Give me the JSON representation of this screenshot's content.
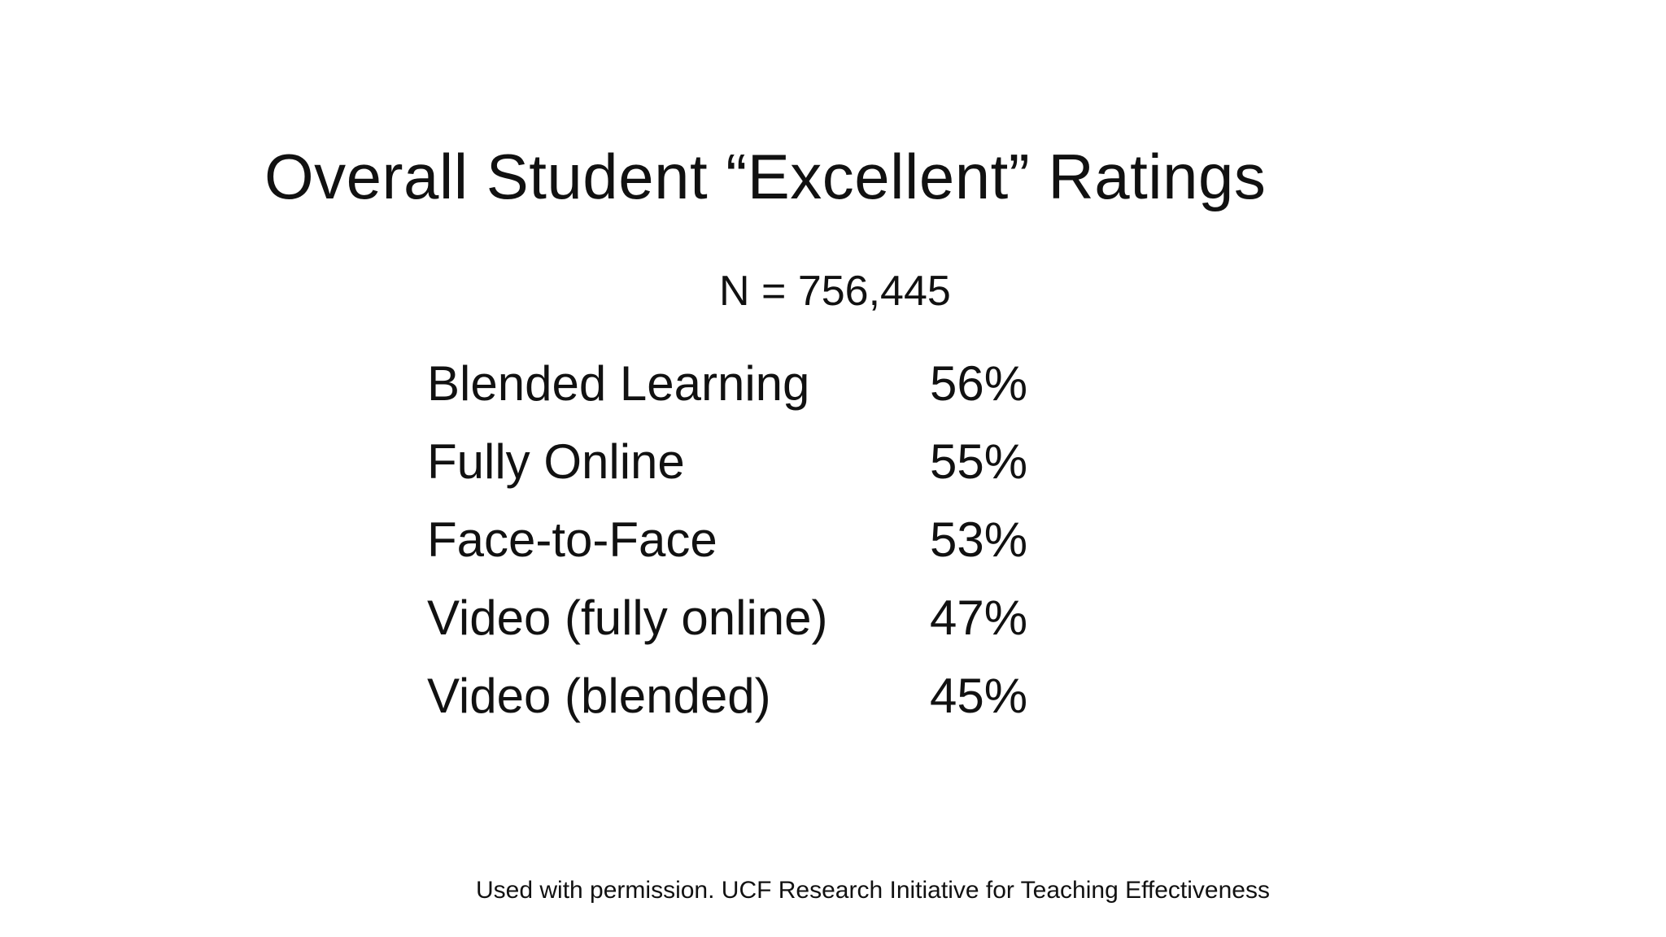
{
  "slide": {
    "title": "Overall Student “Excellent” Ratings",
    "subtitle": "N = 756,445",
    "ratings": [
      {
        "label": "Blended Learning",
        "value": "56%"
      },
      {
        "label": "Fully Online",
        "value": "55%"
      },
      {
        "label": "Face-to-Face",
        "value": "53%"
      },
      {
        "label": "Video (fully online)",
        "value": "47%"
      },
      {
        "label": "Video (blended)",
        "value": "45%"
      }
    ],
    "footer": "Used with permission. UCF Research Initiative for Teaching Effectiveness"
  },
  "colors": {
    "background": "#ffffff",
    "text": "#111111"
  }
}
